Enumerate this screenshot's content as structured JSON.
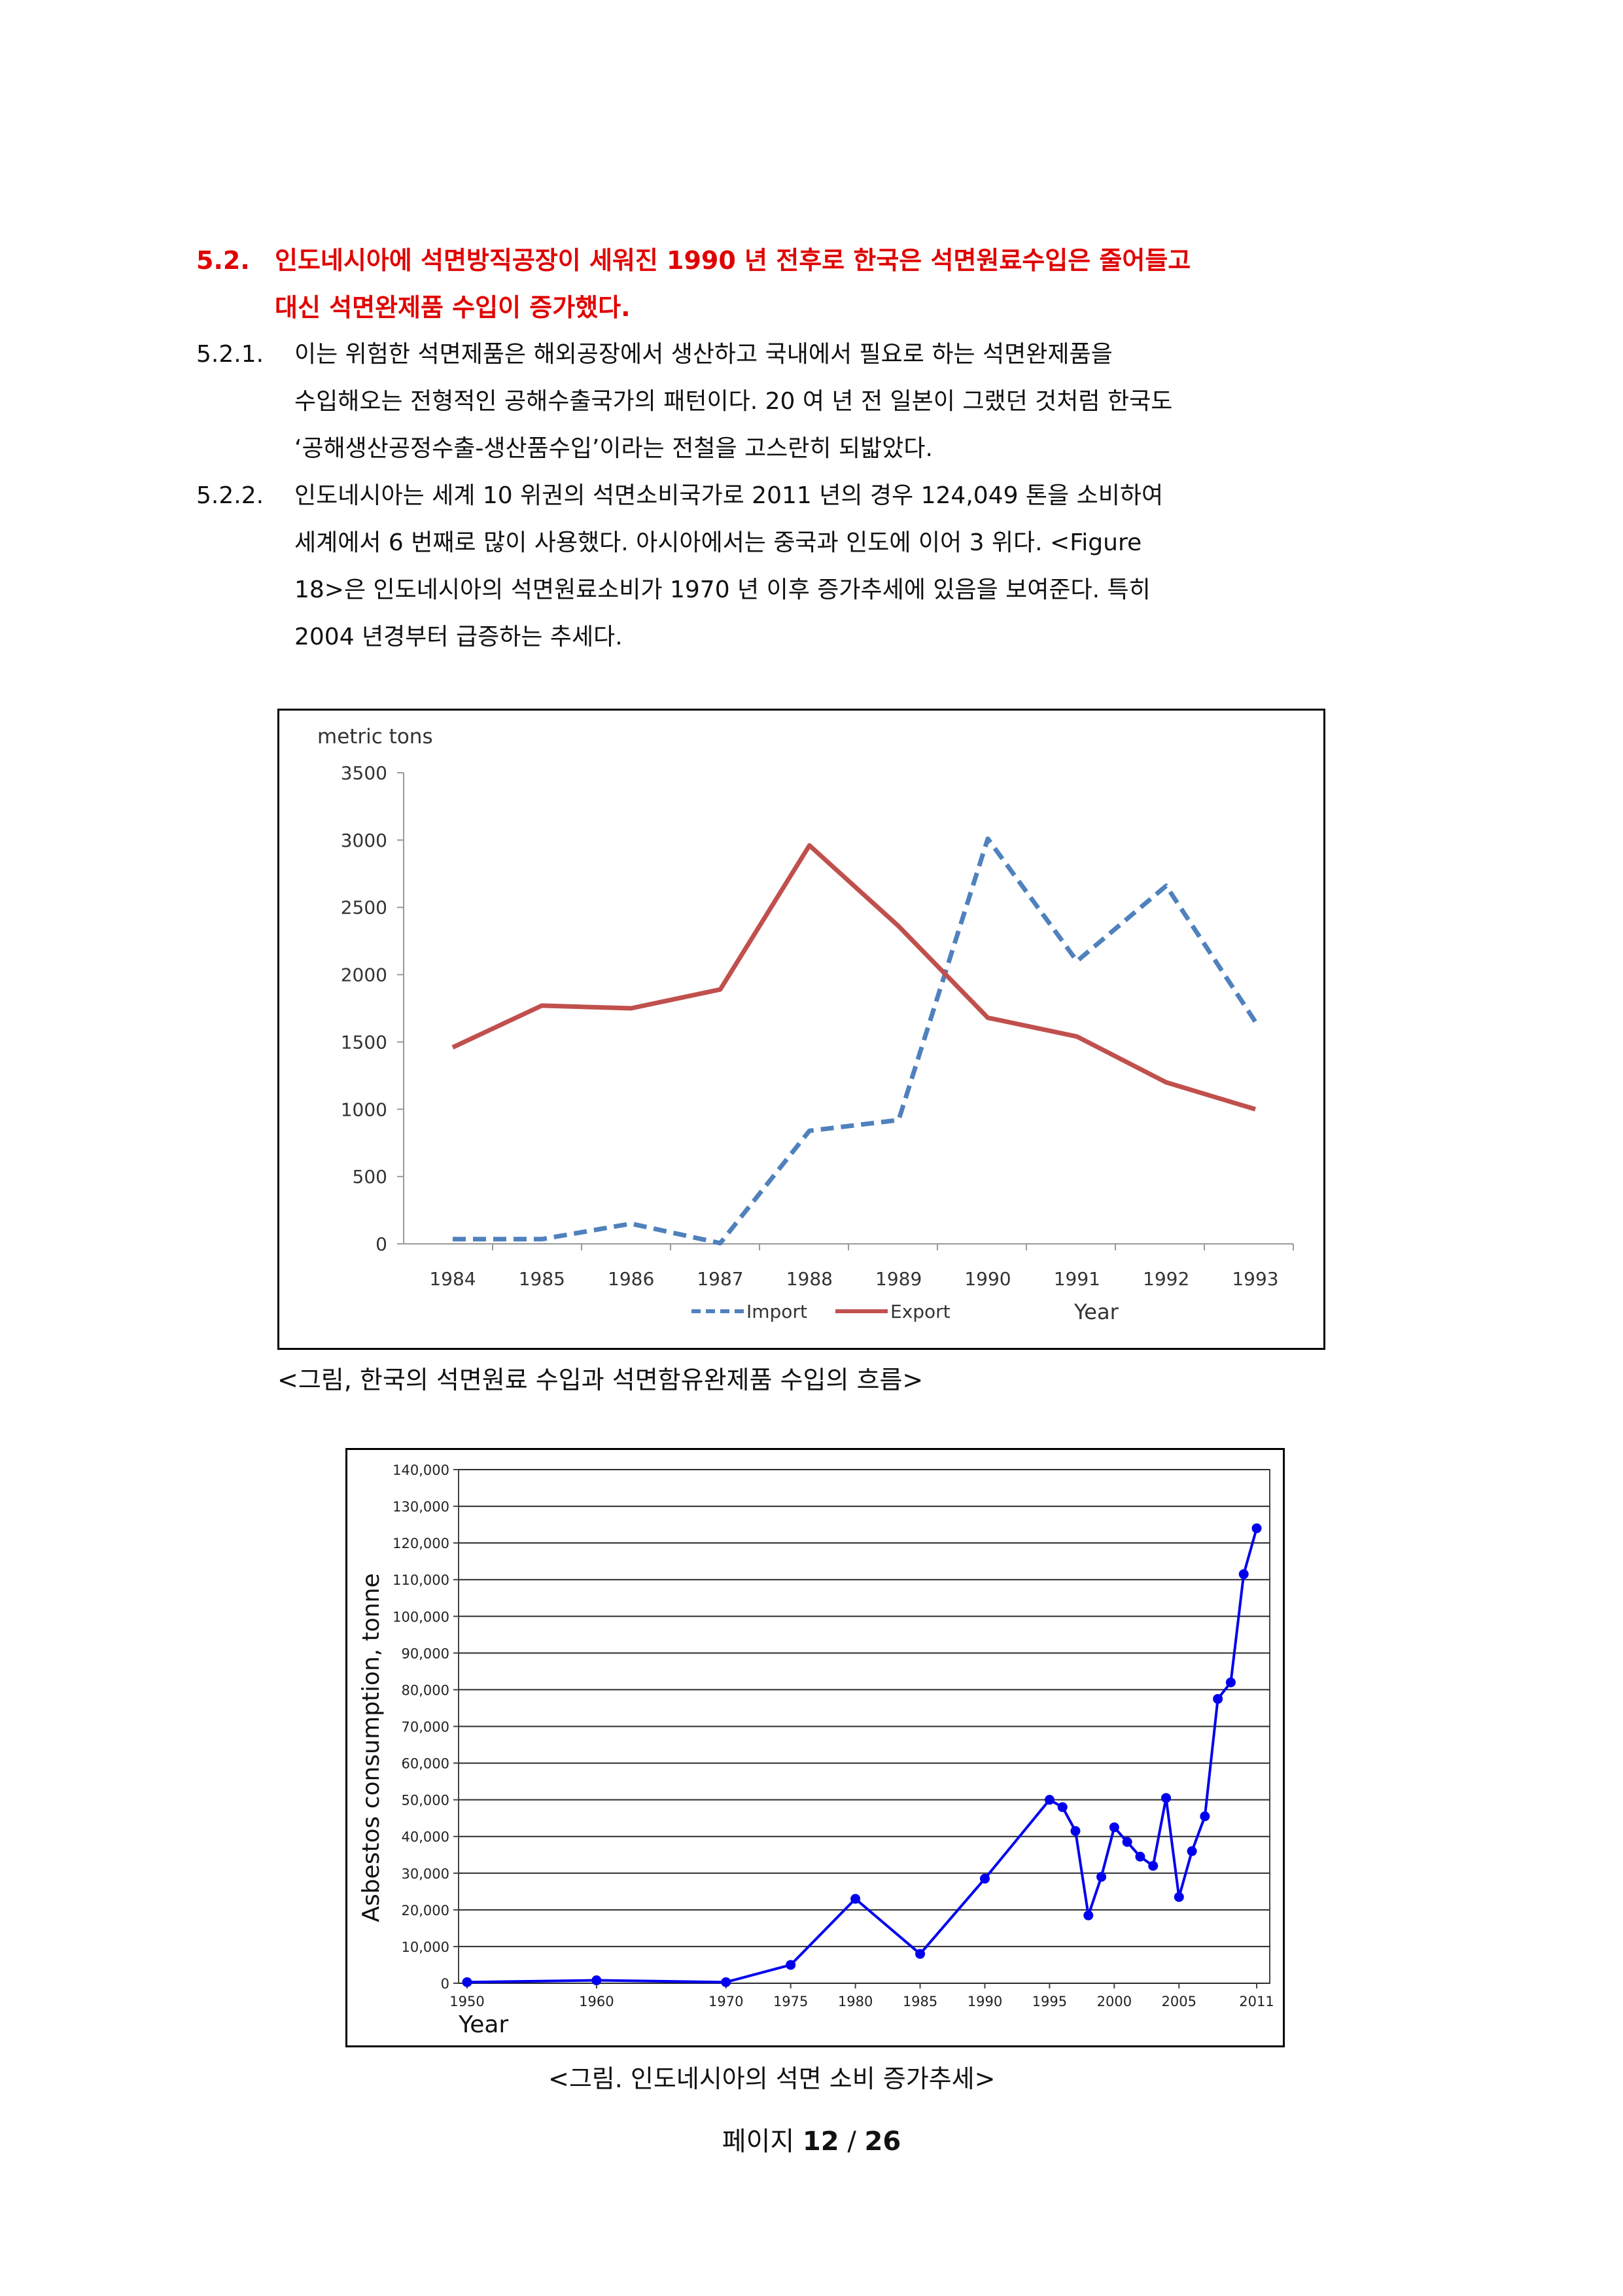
{
  "heading": {
    "number": "5.2.",
    "line1": "인도네시아에 석면방직공장이 세워진 1990 년 전후로 한국은 석면원료수입은 줄어들고",
    "line2": "대신 석면완제품 수입이 증가했다."
  },
  "paragraphs": [
    {
      "number": "5.2.1.",
      "lines": [
        "이는 위험한 석면제품은 해외공장에서 생산하고 국내에서 필요로 하는 석면완제품을",
        "수입해오는 전형적인 공해수출국가의 패턴이다. 20 여 년 전 일본이 그랬던 것처럼 한국도",
        "‘공해생산공정수출-생산품수입’이라는 전철을 고스란히 되밟았다."
      ]
    },
    {
      "number": "5.2.2.",
      "lines": [
        "인도네시아는 세계 10 위권의 석면소비국가로 2011 년의 경우 124,049 톤을 소비하여",
        "세계에서 6 번째로 많이 사용했다. 아시아에서는 중국과 인도에 이어 3 위다. <Figure",
        "18>은 인도네시아의 석면원료소비가 1970 년 이후 증가추세에 있음을 보여준다. 특히",
        "2004 년경부터 급증하는 추세다."
      ]
    }
  ],
  "chart_data": [
    {
      "type": "line",
      "title": "",
      "ylabel": "metric tons",
      "xlabel": "Year",
      "ylim": [
        0,
        3500
      ],
      "yticks": [
        "0",
        "500",
        "1000",
        "1500",
        "2000",
        "2500",
        "3000",
        "3500"
      ],
      "x": [
        "1984",
        "1985",
        "1986",
        "1987",
        "1988",
        "1989",
        "1990",
        "1991",
        "1992",
        "1993"
      ],
      "legend_position": "bottom",
      "series": [
        {
          "name": "Import",
          "color": "#4f81bd",
          "style": "dashed",
          "values": [
            35,
            35,
            150,
            5,
            840,
            920,
            3010,
            2100,
            2660,
            1650
          ]
        },
        {
          "name": "Export",
          "color": "#c0504d",
          "style": "solid",
          "values": [
            1460,
            1770,
            1750,
            1890,
            2960,
            2360,
            1680,
            1540,
            1200,
            1000
          ]
        }
      ],
      "caption": "<그림, 한국의 석면원료 수입과 석면함유완제품 수입의 흐름>"
    },
    {
      "type": "line",
      "title": "",
      "ylabel": "Asbestos consumption, tonne",
      "xlabel": "Year",
      "ylim": [
        0,
        140000
      ],
      "xlim": [
        1950,
        2011
      ],
      "grid": true,
      "yticks": [
        "0",
        "10,000",
        "20,000",
        "30,000",
        "40,000",
        "50,000",
        "60,000",
        "70,000",
        "80,000",
        "90,000",
        "100,000",
        "110,000",
        "120,000",
        "130,000",
        "140,000"
      ],
      "xticks": [
        "1950",
        "1960",
        "1970",
        "1975",
        "1980",
        "1985",
        "1990",
        "1995",
        "2000",
        "2005",
        "2011"
      ],
      "color": "#0000ee",
      "points": [
        [
          1950,
          300
        ],
        [
          1960,
          800
        ],
        [
          1970,
          300
        ],
        [
          1975,
          5000
        ],
        [
          1980,
          23000
        ],
        [
          1985,
          8000
        ],
        [
          1990,
          28500
        ],
        [
          1995,
          50000
        ],
        [
          1996,
          48000
        ],
        [
          1997,
          41500
        ],
        [
          1998,
          18500
        ],
        [
          1999,
          29000
        ],
        [
          2000,
          42500
        ],
        [
          2001,
          38500
        ],
        [
          2002,
          34500
        ],
        [
          2003,
          32000
        ],
        [
          2004,
          50500
        ],
        [
          2005,
          23500
        ],
        [
          2006,
          36000
        ],
        [
          2007,
          45500
        ],
        [
          2008,
          77500
        ],
        [
          2009,
          82000
        ],
        [
          2010,
          111500
        ],
        [
          2011,
          124000
        ]
      ],
      "caption": "<그림. 인도네시아의 석면 소비 증가추세>"
    }
  ],
  "footer": {
    "prefix": "페이지",
    "current": "12",
    "separator": "/",
    "total": "26"
  }
}
